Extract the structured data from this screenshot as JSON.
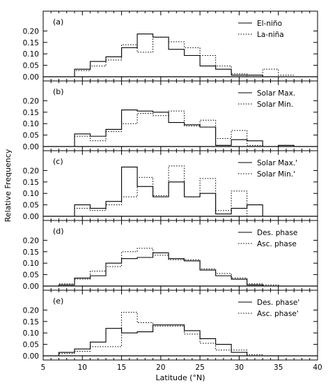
{
  "figure": {
    "ylabel": "Relative Frequency",
    "xlabel": "Latitude (°N)",
    "xticks": [
      "5",
      "10",
      "15",
      "20",
      "25",
      "30",
      "35",
      "40"
    ]
  },
  "chart_data": [
    {
      "type": "histogram-step",
      "panel": "(a)",
      "xlabel": "Latitude (°N)",
      "ylabel": "Relative Frequency",
      "xlim": [
        5,
        40
      ],
      "ylim": [
        0,
        0.25
      ],
      "yticks": [
        "0.00",
        "0.05",
        "0.10",
        "0.15",
        "0.20"
      ],
      "grid": false,
      "legend_position": "top-right",
      "bin_edges": [
        9,
        11,
        13,
        15,
        17,
        19,
        21,
        23,
        25,
        27,
        29,
        31,
        33,
        35,
        37
      ],
      "series": [
        {
          "name": "El-niño",
          "style": "solid",
          "values": [
            0.033,
            0.067,
            0.087,
            0.127,
            0.187,
            0.173,
            0.12,
            0.093,
            0.047,
            0.033,
            0.007,
            0.007,
            0.0,
            0.0
          ]
        },
        {
          "name": "La-niña",
          "style": "dotted",
          "values": [
            0.027,
            0.047,
            0.073,
            0.14,
            0.107,
            0.173,
            0.153,
            0.127,
            0.093,
            0.047,
            0.013,
            0.0,
            0.033,
            0.007
          ]
        }
      ]
    },
    {
      "type": "histogram-step",
      "panel": "(b)",
      "xlim": [
        5,
        40
      ],
      "ylim": [
        0,
        0.25
      ],
      "yticks": [
        "0.00",
        "0.05",
        "0.10",
        "0.15",
        "0.20"
      ],
      "grid": false,
      "legend_position": "top-right",
      "bin_edges": [
        9,
        11,
        13,
        15,
        17,
        19,
        21,
        23,
        25,
        27,
        29,
        31,
        33,
        35,
        37
      ],
      "series": [
        {
          "name": "Solar Max.",
          "style": "solid",
          "values": [
            0.055,
            0.045,
            0.075,
            0.16,
            0.155,
            0.15,
            0.105,
            0.095,
            0.085,
            0.005,
            0.03,
            0.025,
            0.0,
            0.005
          ]
        },
        {
          "name": "Solar Min.",
          "style": "dotted",
          "values": [
            0.045,
            0.025,
            0.065,
            0.1,
            0.145,
            0.135,
            0.155,
            0.09,
            0.115,
            0.035,
            0.07,
            0.005,
            0.0,
            0.0
          ]
        }
      ]
    },
    {
      "type": "histogram-step",
      "panel": "(c)",
      "xlim": [
        5,
        40
      ],
      "ylim": [
        0,
        0.25
      ],
      "yticks": [
        "0.00",
        "0.05",
        "0.10",
        "0.15",
        "0.20"
      ],
      "grid": false,
      "legend_position": "top-right",
      "bin_edges": [
        9,
        11,
        13,
        15,
        17,
        19,
        21,
        23,
        25,
        27,
        29,
        31,
        33,
        35,
        37
      ],
      "series": [
        {
          "name": "Solar Max.'",
          "style": "solid",
          "values": [
            0.05,
            0.035,
            0.065,
            0.215,
            0.13,
            0.085,
            0.15,
            0.085,
            0.1,
            0.01,
            0.035,
            0.05,
            0.0,
            0.0
          ]
        },
        {
          "name": "Solar Min.'",
          "style": "dotted",
          "values": [
            0.035,
            0.025,
            0.05,
            0.085,
            0.17,
            0.09,
            0.22,
            0.085,
            0.165,
            0.025,
            0.11,
            0.0,
            0.0,
            0.0
          ]
        }
      ]
    },
    {
      "type": "histogram-step",
      "panel": "(d)",
      "xlim": [
        5,
        40
      ],
      "ylim": [
        0,
        0.25
      ],
      "yticks": [
        "0.00",
        "0.05",
        "0.10",
        "0.15",
        "0.20"
      ],
      "grid": false,
      "legend_position": "top-right",
      "bin_edges": [
        7,
        9,
        11,
        13,
        15,
        17,
        19,
        21,
        23,
        25,
        27,
        29,
        31,
        33,
        35,
        37
      ],
      "series": [
        {
          "name": "Des. phase",
          "style": "solid",
          "values": [
            0.005,
            0.035,
            0.045,
            0.1,
            0.12,
            0.125,
            0.145,
            0.12,
            0.11,
            0.07,
            0.045,
            0.03,
            0.005,
            0.0,
            0.0
          ]
        },
        {
          "name": "Asc. phase",
          "style": "dotted",
          "values": [
            0.01,
            0.03,
            0.065,
            0.085,
            0.15,
            0.165,
            0.135,
            0.115,
            0.115,
            0.075,
            0.055,
            0.035,
            0.01,
            0.005,
            0.0
          ]
        }
      ]
    },
    {
      "type": "histogram-step",
      "panel": "(e)",
      "xlim": [
        5,
        40
      ],
      "ylim": [
        0,
        0.25
      ],
      "yticks": [
        "0.00",
        "0.05",
        "0.10",
        "0.15",
        "0.20"
      ],
      "grid": false,
      "legend_position": "top-right",
      "bin_edges": [
        7,
        9,
        11,
        13,
        15,
        17,
        19,
        21,
        23,
        25,
        27,
        29,
        31,
        33
      ],
      "series": [
        {
          "name": "Des. phase'",
          "style": "solid",
          "values": [
            0.015,
            0.03,
            0.06,
            0.12,
            0.1,
            0.105,
            0.135,
            0.135,
            0.11,
            0.075,
            0.05,
            0.015,
            0.0
          ]
        },
        {
          "name": "Asc. phase'",
          "style": "dotted",
          "values": [
            0.01,
            0.02,
            0.04,
            0.04,
            0.19,
            0.145,
            0.13,
            0.13,
            0.095,
            0.055,
            0.025,
            0.025,
            0.005
          ]
        }
      ]
    }
  ]
}
